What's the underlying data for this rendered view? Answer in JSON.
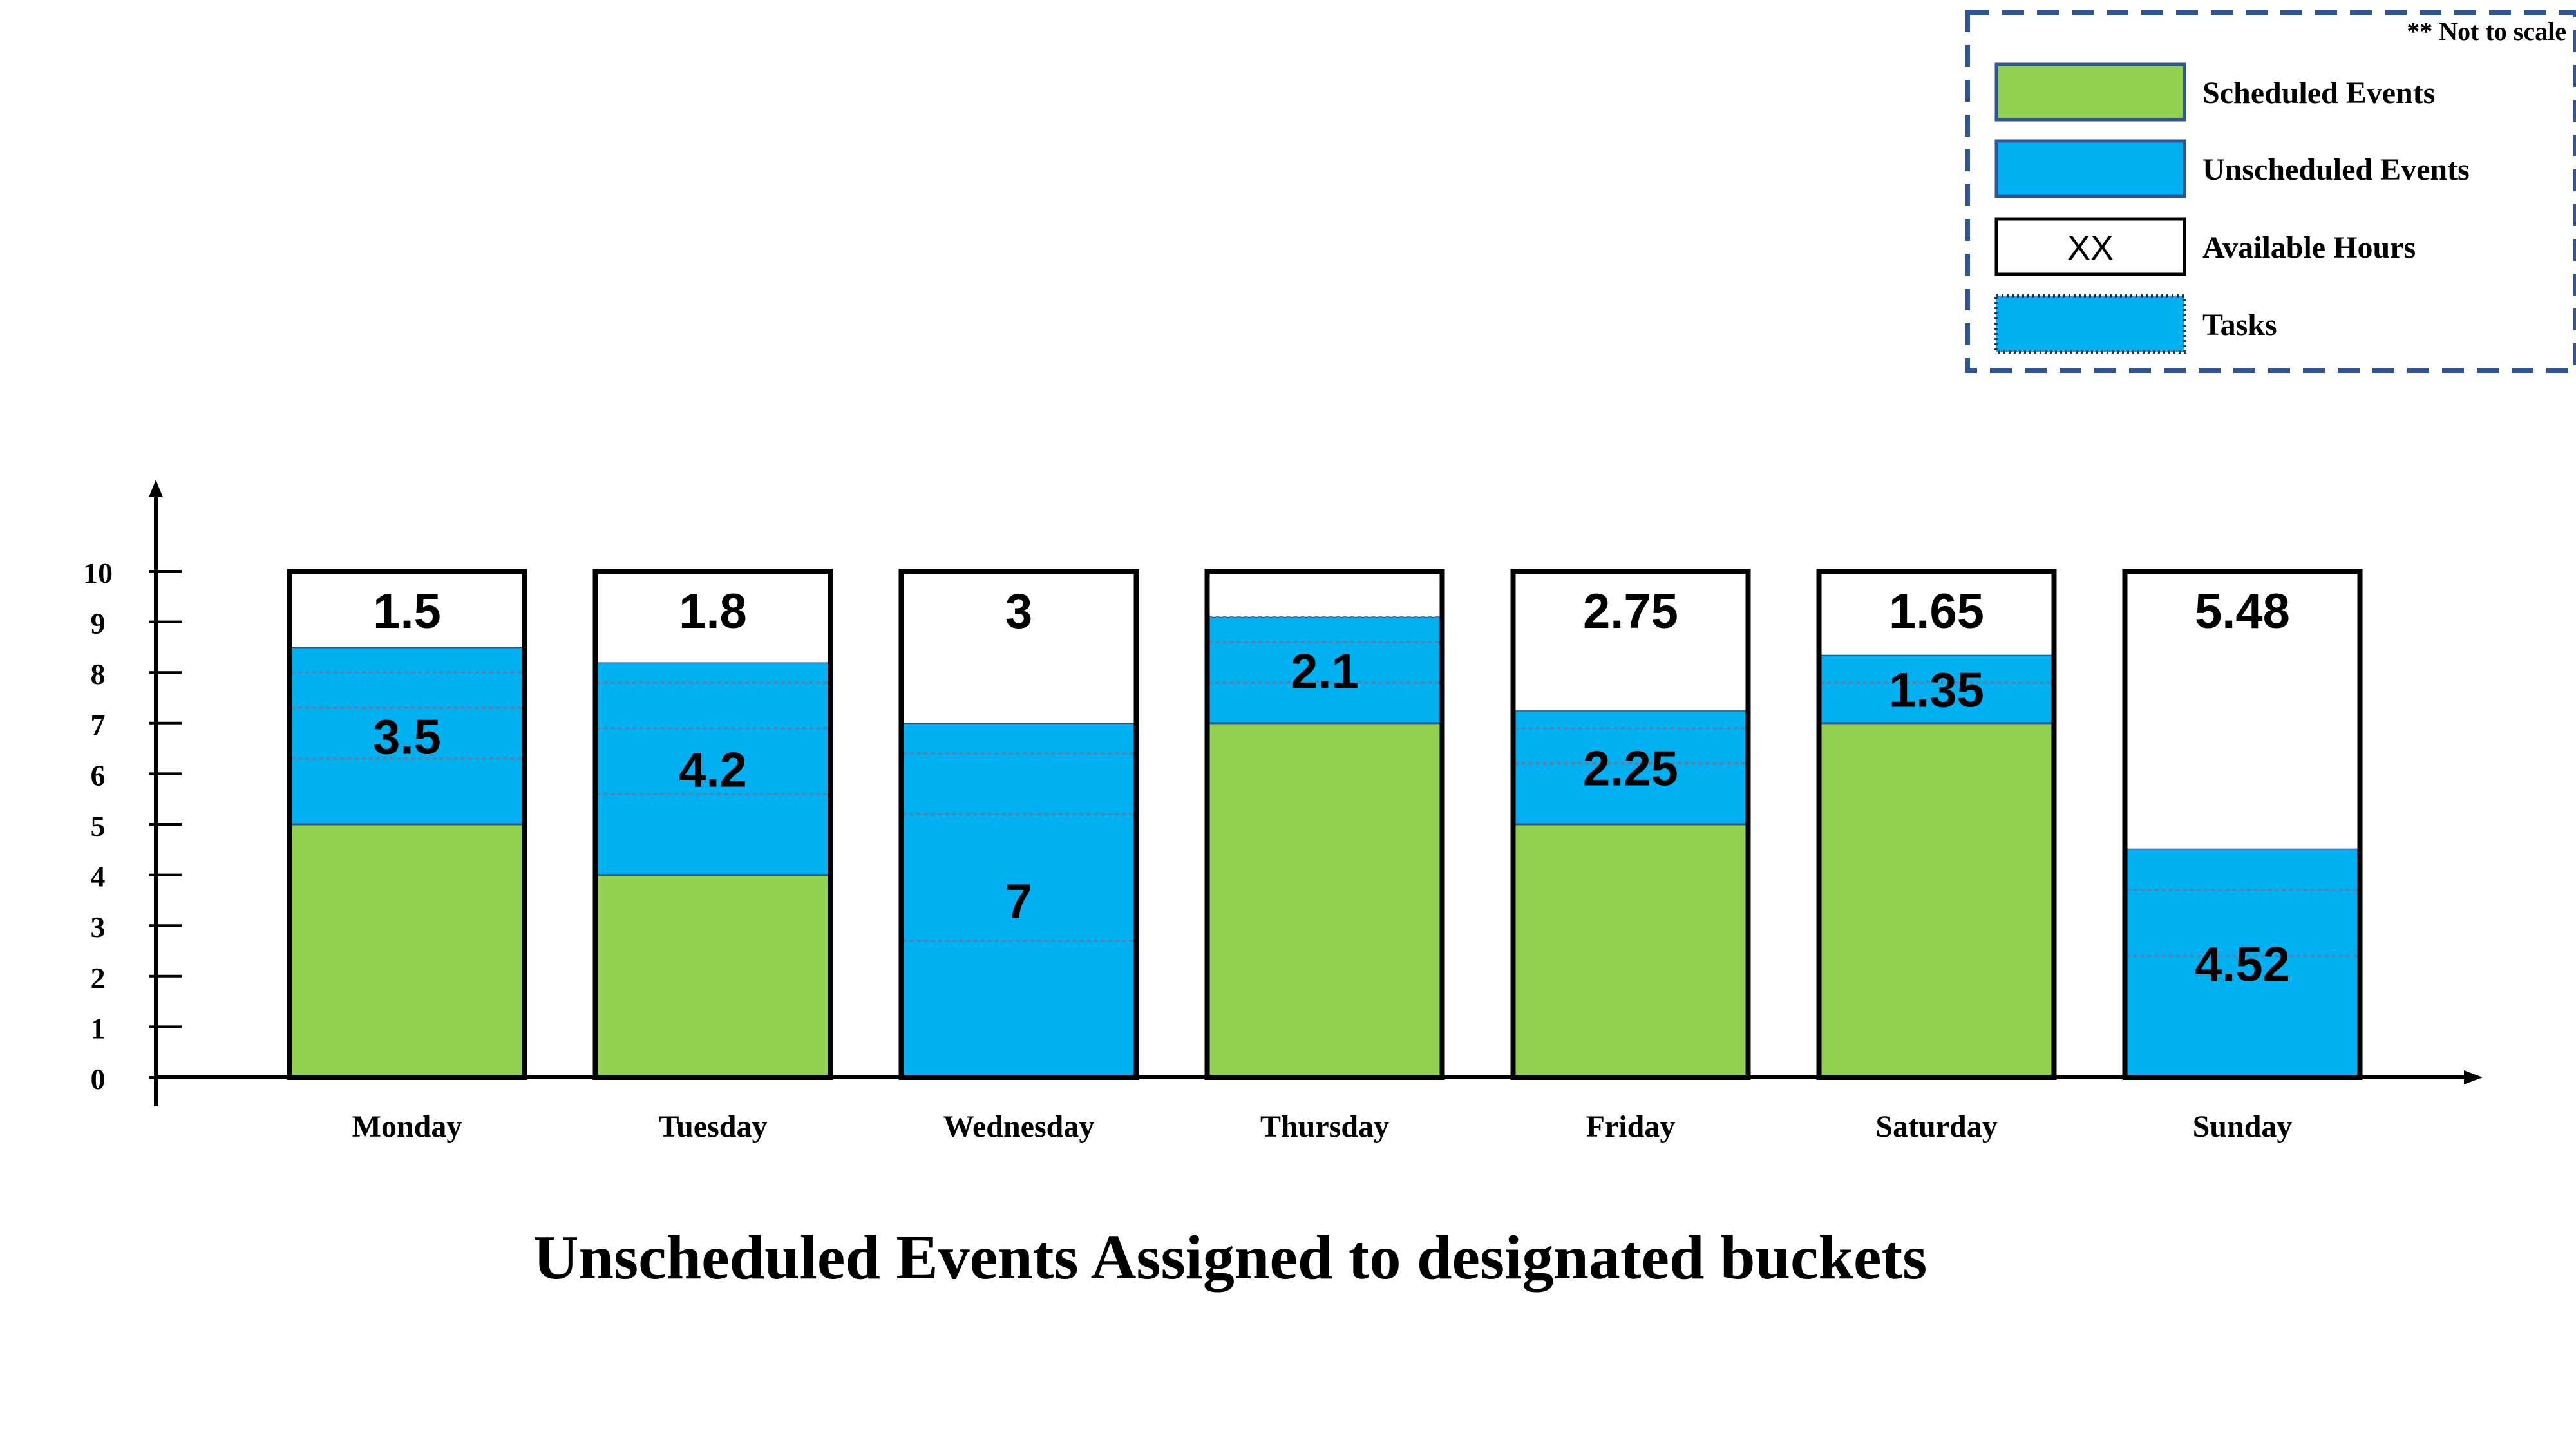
{
  "chart_data": {
    "type": "bar",
    "stacked": true,
    "title": "Unscheduled Events Assigned to designated buckets",
    "note": "** Not to scale",
    "categories": [
      "Monday",
      "Tuesday",
      "Wednesday",
      "Thursday",
      "Friday",
      "Saturday",
      "Sunday"
    ],
    "y_ticks": [
      "0",
      "1",
      "2",
      "3",
      "4",
      "5",
      "6",
      "7",
      "8",
      "9",
      "10"
    ],
    "ylim": [
      0,
      10
    ],
    "series": [
      {
        "name": "Scheduled Events",
        "color": "#92d050",
        "values": [
          5,
          4,
          0,
          7,
          5,
          7,
          0
        ],
        "labels": [
          "",
          "",
          "",
          "",
          "",
          "",
          ""
        ]
      },
      {
        "name": "Unscheduled Events",
        "color": "#00b0f0",
        "values": [
          3.5,
          4.2,
          7,
          2.1,
          2.25,
          1.35,
          4.52
        ],
        "labels": [
          "3.5",
          "4.2",
          "7",
          "2.1",
          "2.25",
          "1.35",
          "4.52"
        ]
      },
      {
        "name": "Available Hours",
        "color": "#ffffff",
        "values": [
          1.5,
          1.8,
          3,
          0.9,
          2.75,
          1.65,
          5.48
        ],
        "labels": [
          "1.5",
          "1.8",
          "3",
          "",
          "2.75",
          "1.65",
          "5.48"
        ]
      }
    ],
    "task_dividers": [
      [
        6.3,
        7.3,
        8
      ],
      [
        5.6,
        6.9,
        7.8
      ],
      [
        2.7,
        5.2,
        6.4
      ],
      [
        7.8,
        8.6,
        9.1
      ],
      [
        6.2,
        6.9
      ],
      [
        7.8
      ],
      [
        2.4,
        3.7
      ]
    ],
    "legend": {
      "position": "top-right",
      "items": [
        {
          "label": "Scheduled Events",
          "swatch": "solid",
          "color": "#92d050",
          "text": ""
        },
        {
          "label": "Unscheduled Events",
          "swatch": "solid",
          "color": "#00b0f0",
          "text": ""
        },
        {
          "label": "Available Hours",
          "swatch": "solid",
          "color": "#ffffff",
          "text": "XX"
        },
        {
          "label": "Tasks",
          "swatch": "dotted",
          "color": "#00b0f0",
          "text": ""
        }
      ]
    },
    "grid": false
  }
}
